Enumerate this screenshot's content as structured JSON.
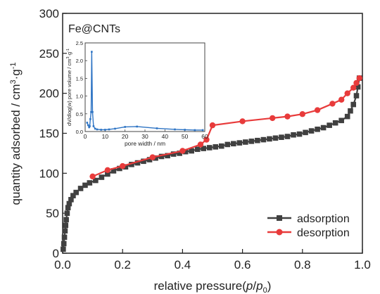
{
  "chart_data": {
    "type": "line",
    "annotation": "Fe@CNTs",
    "xlabel_main": "relative pressure(",
    "xlabel_p": "p",
    "xlabel_slash": "/",
    "xlabel_p0": "p",
    "xlabel_zero": "0",
    "xlabel_close": ")",
    "ylabel_main": "quantity adsorbed / cm",
    "ylabel_sup3": "3",
    "ylabel_dot": "·g",
    "ylabel_supm1": "-1",
    "xlim": [
      0,
      1.0
    ],
    "ylim": [
      0,
      300
    ],
    "xticks": [
      0.0,
      0.2,
      0.4,
      0.6,
      0.8,
      1.0
    ],
    "xtick_labels": [
      "0.0",
      "0.2",
      "0.4",
      "0.6",
      "0.8",
      "1.0"
    ],
    "yticks": [
      0,
      50,
      100,
      150,
      200,
      250,
      300
    ],
    "ytick_labels": [
      "0",
      "50",
      "100",
      "150",
      "200",
      "250",
      "300"
    ],
    "legend_position": "bottom-right",
    "series": [
      {
        "name": "adsorption",
        "color": "#404040",
        "marker": "square",
        "points": [
          [
            0.002,
            5
          ],
          [
            0.004,
            12
          ],
          [
            0.006,
            20
          ],
          [
            0.008,
            28
          ],
          [
            0.01,
            35
          ],
          [
            0.012,
            42
          ],
          [
            0.015,
            50
          ],
          [
            0.018,
            57
          ],
          [
            0.022,
            62
          ],
          [
            0.028,
            67
          ],
          [
            0.035,
            72
          ],
          [
            0.045,
            76
          ],
          [
            0.06,
            81
          ],
          [
            0.075,
            85
          ],
          [
            0.09,
            88
          ],
          [
            0.11,
            91
          ],
          [
            0.13,
            95
          ],
          [
            0.15,
            99
          ],
          [
            0.17,
            103
          ],
          [
            0.19,
            106
          ],
          [
            0.21,
            108
          ],
          [
            0.23,
            111
          ],
          [
            0.25,
            113
          ],
          [
            0.27,
            115
          ],
          [
            0.29,
            117
          ],
          [
            0.31,
            119
          ],
          [
            0.33,
            121
          ],
          [
            0.35,
            122
          ],
          [
            0.37,
            124
          ],
          [
            0.39,
            125
          ],
          [
            0.41,
            127
          ],
          [
            0.43,
            128
          ],
          [
            0.45,
            130
          ],
          [
            0.47,
            131
          ],
          [
            0.49,
            132
          ],
          [
            0.51,
            133
          ],
          [
            0.53,
            134
          ],
          [
            0.55,
            136
          ],
          [
            0.57,
            137
          ],
          [
            0.59,
            138
          ],
          [
            0.61,
            139
          ],
          [
            0.63,
            140
          ],
          [
            0.65,
            141
          ],
          [
            0.67,
            142
          ],
          [
            0.69,
            143
          ],
          [
            0.71,
            144
          ],
          [
            0.73,
            145
          ],
          [
            0.75,
            146
          ],
          [
            0.77,
            148
          ],
          [
            0.79,
            149
          ],
          [
            0.81,
            151
          ],
          [
            0.83,
            153
          ],
          [
            0.85,
            155
          ],
          [
            0.87,
            157
          ],
          [
            0.89,
            160
          ],
          [
            0.91,
            163
          ],
          [
            0.93,
            166
          ],
          [
            0.95,
            171
          ],
          [
            0.96,
            178
          ],
          [
            0.97,
            186
          ],
          [
            0.98,
            197
          ],
          [
            0.985,
            208
          ],
          [
            0.99,
            219
          ]
        ]
      },
      {
        "name": "desorption",
        "color": "#e83b3b",
        "marker": "circle",
        "points": [
          [
            0.99,
            219
          ],
          [
            0.98,
            213
          ],
          [
            0.97,
            207
          ],
          [
            0.95,
            200
          ],
          [
            0.93,
            192
          ],
          [
            0.9,
            187
          ],
          [
            0.85,
            179
          ],
          [
            0.8,
            174
          ],
          [
            0.75,
            171
          ],
          [
            0.7,
            169
          ],
          [
            0.6,
            165
          ],
          [
            0.5,
            160
          ],
          [
            0.48,
            142
          ],
          [
            0.46,
            136
          ],
          [
            0.4,
            128
          ],
          [
            0.3,
            120
          ],
          [
            0.2,
            109
          ],
          [
            0.15,
            104
          ],
          [
            0.1,
            96
          ]
        ]
      }
    ],
    "inset": {
      "type": "line",
      "xlabel": "pore width / nm",
      "ylabel_main": "dV/dlog(w) pore volume / cm",
      "ylabel_sup3": "3",
      "ylabel_dot": "·g",
      "ylabel_supm1": "-1",
      "xlim": [
        0,
        60
      ],
      "ylim": [
        0,
        2.5
      ],
      "xticks": [
        0,
        10,
        20,
        30,
        40,
        50,
        60
      ],
      "xtick_labels": [
        "0",
        "10",
        "20",
        "30",
        "40",
        "50",
        "60"
      ],
      "yticks": [
        0.0,
        0.5,
        1.0,
        1.5,
        2.0,
        2.5
      ],
      "ytick_labels": [
        "0.0",
        "0.5",
        "1.0",
        "1.5",
        "2.0",
        "2.5"
      ],
      "color": "#2e74c4",
      "points": [
        [
          1.0,
          0.25
        ],
        [
          1.5,
          0.18
        ],
        [
          2.0,
          0.12
        ],
        [
          2.3,
          0.15
        ],
        [
          2.6,
          0.35
        ],
        [
          3.0,
          0.55
        ],
        [
          3.3,
          2.25
        ],
        [
          3.7,
          0.55
        ],
        [
          4.2,
          0.15
        ],
        [
          5.0,
          0.08
        ],
        [
          6.0,
          0.06
        ],
        [
          8.0,
          0.05
        ],
        [
          10.0,
          0.05
        ],
        [
          12.0,
          0.06
        ],
        [
          15.0,
          0.08
        ],
        [
          20.0,
          0.13
        ],
        [
          26.0,
          0.14
        ],
        [
          36.0,
          0.09
        ],
        [
          45.0,
          0.06
        ],
        [
          50.0,
          0.05
        ],
        [
          55.0,
          0.04
        ],
        [
          59.0,
          0.04
        ]
      ]
    }
  }
}
